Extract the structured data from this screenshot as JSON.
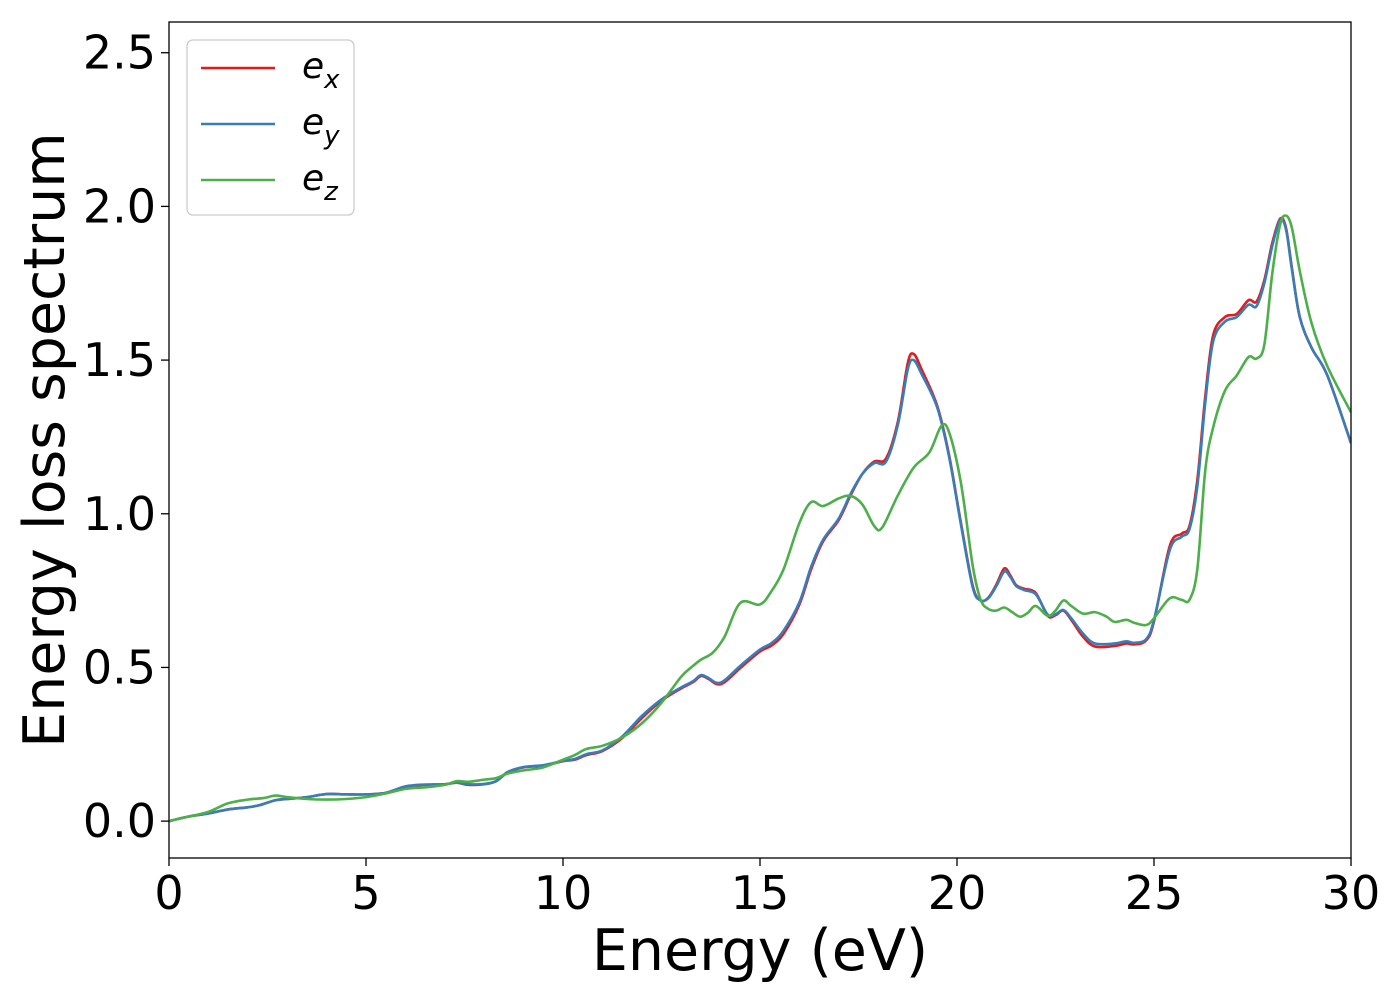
{
  "chart_data": {
    "type": "line",
    "title": "",
    "xlabel": "Energy (eV)",
    "ylabel": "Energy loss spectrum",
    "xlim": [
      0,
      30
    ],
    "ylim": [
      -0.12,
      2.6
    ],
    "x_ticks": [
      0,
      5,
      10,
      15,
      20,
      25,
      30
    ],
    "x_tick_labels": [
      "0",
      "5",
      "10",
      "15",
      "20",
      "25",
      "30"
    ],
    "y_ticks": [
      0.0,
      0.5,
      1.0,
      1.5,
      2.0,
      2.5
    ],
    "y_tick_labels": [
      "0.0",
      "0.5",
      "1.0",
      "1.5",
      "2.0",
      "2.5"
    ],
    "grid": false,
    "legend_position": "top-left",
    "series": [
      {
        "name": "e_x",
        "legend_base": "e",
        "legend_sub": "x",
        "color": "#e41a1c",
        "points": [
          [
            0,
            0.0
          ],
          [
            0.5,
            0.015
          ],
          [
            1,
            0.025
          ],
          [
            1.5,
            0.038
          ],
          [
            2,
            0.045
          ],
          [
            2.3,
            0.052
          ],
          [
            2.7,
            0.068
          ],
          [
            3,
            0.072
          ],
          [
            3.5,
            0.078
          ],
          [
            4,
            0.088
          ],
          [
            4.5,
            0.087
          ],
          [
            5,
            0.087
          ],
          [
            5.5,
            0.092
          ],
          [
            6,
            0.112
          ],
          [
            6.5,
            0.118
          ],
          [
            7,
            0.12
          ],
          [
            7.3,
            0.125
          ],
          [
            7.6,
            0.118
          ],
          [
            8,
            0.12
          ],
          [
            8.3,
            0.13
          ],
          [
            8.6,
            0.158
          ],
          [
            9,
            0.175
          ],
          [
            9.5,
            0.18
          ],
          [
            10,
            0.195
          ],
          [
            10.3,
            0.2
          ],
          [
            10.6,
            0.215
          ],
          [
            11,
            0.228
          ],
          [
            11.5,
            0.27
          ],
          [
            12,
            0.335
          ],
          [
            12.5,
            0.392
          ],
          [
            13,
            0.432
          ],
          [
            13.3,
            0.452
          ],
          [
            13.5,
            0.472
          ],
          [
            13.7,
            0.462
          ],
          [
            13.9,
            0.446
          ],
          [
            14.1,
            0.452
          ],
          [
            14.5,
            0.498
          ],
          [
            15,
            0.552
          ],
          [
            15.3,
            0.572
          ],
          [
            15.6,
            0.61
          ],
          [
            16,
            0.705
          ],
          [
            16.3,
            0.82
          ],
          [
            16.6,
            0.91
          ],
          [
            17,
            0.98
          ],
          [
            17.3,
            1.06
          ],
          [
            17.6,
            1.13
          ],
          [
            17.9,
            1.17
          ],
          [
            18.2,
            1.18
          ],
          [
            18.5,
            1.3
          ],
          [
            18.75,
            1.49
          ],
          [
            18.9,
            1.52
          ],
          [
            19.1,
            1.47
          ],
          [
            19.5,
            1.35
          ],
          [
            19.8,
            1.19
          ],
          [
            20.1,
            0.97
          ],
          [
            20.4,
            0.765
          ],
          [
            20.6,
            0.718
          ],
          [
            20.8,
            0.728
          ],
          [
            21,
            0.77
          ],
          [
            21.2,
            0.822
          ],
          [
            21.35,
            0.8
          ],
          [
            21.5,
            0.768
          ],
          [
            21.7,
            0.756
          ],
          [
            22,
            0.742
          ],
          [
            22.3,
            0.668
          ],
          [
            22.5,
            0.67
          ],
          [
            22.7,
            0.685
          ],
          [
            22.9,
            0.655
          ],
          [
            23.2,
            0.6
          ],
          [
            23.5,
            0.568
          ],
          [
            24,
            0.57
          ],
          [
            24.3,
            0.578
          ],
          [
            24.5,
            0.575
          ],
          [
            24.8,
            0.588
          ],
          [
            25,
            0.65
          ],
          [
            25.4,
            0.895
          ],
          [
            25.7,
            0.935
          ],
          [
            25.9,
            0.96
          ],
          [
            26.1,
            1.11
          ],
          [
            26.3,
            1.38
          ],
          [
            26.5,
            1.58
          ],
          [
            26.8,
            1.64
          ],
          [
            27.1,
            1.65
          ],
          [
            27.4,
            1.695
          ],
          [
            27.6,
            1.69
          ],
          [
            27.8,
            1.76
          ],
          [
            28,
            1.88
          ],
          [
            28.2,
            1.96
          ],
          [
            28.35,
            1.93
          ],
          [
            28.5,
            1.8
          ],
          [
            28.7,
            1.64
          ],
          [
            29,
            1.54
          ],
          [
            29.4,
            1.45
          ],
          [
            30,
            1.23
          ]
        ]
      },
      {
        "name": "e_y",
        "legend_base": "e",
        "legend_sub": "y",
        "color": "#377eb8",
        "points": [
          [
            0,
            0.0
          ],
          [
            0.5,
            0.015
          ],
          [
            1,
            0.025
          ],
          [
            1.5,
            0.038
          ],
          [
            2,
            0.045
          ],
          [
            2.3,
            0.052
          ],
          [
            2.7,
            0.068
          ],
          [
            3,
            0.072
          ],
          [
            3.5,
            0.078
          ],
          [
            4,
            0.088
          ],
          [
            4.5,
            0.087
          ],
          [
            5,
            0.087
          ],
          [
            5.5,
            0.092
          ],
          [
            6,
            0.113
          ],
          [
            6.5,
            0.119
          ],
          [
            7,
            0.12
          ],
          [
            7.3,
            0.125
          ],
          [
            7.6,
            0.12
          ],
          [
            8,
            0.121
          ],
          [
            8.3,
            0.13
          ],
          [
            8.6,
            0.16
          ],
          [
            9,
            0.176
          ],
          [
            9.5,
            0.182
          ],
          [
            10,
            0.196
          ],
          [
            10.3,
            0.202
          ],
          [
            10.6,
            0.218
          ],
          [
            11,
            0.23
          ],
          [
            11.5,
            0.275
          ],
          [
            12,
            0.342
          ],
          [
            12.5,
            0.396
          ],
          [
            13,
            0.435
          ],
          [
            13.3,
            0.455
          ],
          [
            13.5,
            0.475
          ],
          [
            13.7,
            0.465
          ],
          [
            13.9,
            0.45
          ],
          [
            14.1,
            0.458
          ],
          [
            14.5,
            0.505
          ],
          [
            15,
            0.558
          ],
          [
            15.3,
            0.58
          ],
          [
            15.6,
            0.62
          ],
          [
            16,
            0.712
          ],
          [
            16.3,
            0.828
          ],
          [
            16.6,
            0.915
          ],
          [
            17,
            0.985
          ],
          [
            17.3,
            1.065
          ],
          [
            17.6,
            1.13
          ],
          [
            17.9,
            1.165
          ],
          [
            18.2,
            1.17
          ],
          [
            18.5,
            1.29
          ],
          [
            18.75,
            1.47
          ],
          [
            18.9,
            1.5
          ],
          [
            19.1,
            1.455
          ],
          [
            19.5,
            1.345
          ],
          [
            19.8,
            1.185
          ],
          [
            20.1,
            0.965
          ],
          [
            20.4,
            0.76
          ],
          [
            20.6,
            0.718
          ],
          [
            20.8,
            0.726
          ],
          [
            21,
            0.765
          ],
          [
            21.2,
            0.812
          ],
          [
            21.35,
            0.795
          ],
          [
            21.5,
            0.765
          ],
          [
            21.7,
            0.752
          ],
          [
            22,
            0.738
          ],
          [
            22.3,
            0.672
          ],
          [
            22.5,
            0.673
          ],
          [
            22.7,
            0.687
          ],
          [
            22.9,
            0.66
          ],
          [
            23.2,
            0.61
          ],
          [
            23.5,
            0.578
          ],
          [
            24,
            0.578
          ],
          [
            24.3,
            0.585
          ],
          [
            24.5,
            0.58
          ],
          [
            24.8,
            0.592
          ],
          [
            25,
            0.655
          ],
          [
            25.4,
            0.882
          ],
          [
            25.7,
            0.925
          ],
          [
            25.9,
            0.95
          ],
          [
            26.1,
            1.09
          ],
          [
            26.3,
            1.36
          ],
          [
            26.5,
            1.56
          ],
          [
            26.8,
            1.625
          ],
          [
            27.1,
            1.64
          ],
          [
            27.4,
            1.68
          ],
          [
            27.6,
            1.675
          ],
          [
            27.8,
            1.75
          ],
          [
            28,
            1.87
          ],
          [
            28.2,
            1.955
          ],
          [
            28.35,
            1.925
          ],
          [
            28.5,
            1.795
          ],
          [
            28.7,
            1.64
          ],
          [
            29,
            1.54
          ],
          [
            29.4,
            1.45
          ],
          [
            30,
            1.23
          ]
        ]
      },
      {
        "name": "e_z",
        "legend_base": "e",
        "legend_sub": "z",
        "color": "#4daf4a",
        "points": [
          [
            0,
            0.0
          ],
          [
            0.5,
            0.015
          ],
          [
            1,
            0.03
          ],
          [
            1.5,
            0.058
          ],
          [
            2,
            0.07
          ],
          [
            2.4,
            0.075
          ],
          [
            2.7,
            0.083
          ],
          [
            3,
            0.078
          ],
          [
            3.5,
            0.072
          ],
          [
            4,
            0.07
          ],
          [
            4.5,
            0.072
          ],
          [
            5,
            0.078
          ],
          [
            5.5,
            0.09
          ],
          [
            6,
            0.105
          ],
          [
            6.5,
            0.11
          ],
          [
            7,
            0.118
          ],
          [
            7.3,
            0.13
          ],
          [
            7.6,
            0.128
          ],
          [
            8,
            0.135
          ],
          [
            8.3,
            0.14
          ],
          [
            8.6,
            0.155
          ],
          [
            9,
            0.165
          ],
          [
            9.5,
            0.175
          ],
          [
            10,
            0.2
          ],
          [
            10.3,
            0.215
          ],
          [
            10.6,
            0.235
          ],
          [
            11,
            0.245
          ],
          [
            11.5,
            0.272
          ],
          [
            12,
            0.318
          ],
          [
            12.5,
            0.385
          ],
          [
            13,
            0.47
          ],
          [
            13.3,
            0.505
          ],
          [
            13.5,
            0.525
          ],
          [
            13.8,
            0.548
          ],
          [
            14.1,
            0.6
          ],
          [
            14.5,
            0.71
          ],
          [
            15,
            0.705
          ],
          [
            15.3,
            0.75
          ],
          [
            15.6,
            0.82
          ],
          [
            16,
            0.97
          ],
          [
            16.3,
            1.038
          ],
          [
            16.6,
            1.025
          ],
          [
            17,
            1.05
          ],
          [
            17.3,
            1.058
          ],
          [
            17.6,
            1.03
          ],
          [
            17.9,
            0.96
          ],
          [
            18.1,
            0.955
          ],
          [
            18.5,
            1.06
          ],
          [
            18.9,
            1.15
          ],
          [
            19.3,
            1.2
          ],
          [
            19.6,
            1.285
          ],
          [
            19.8,
            1.265
          ],
          [
            20.1,
            1.1
          ],
          [
            20.4,
            0.83
          ],
          [
            20.6,
            0.72
          ],
          [
            20.8,
            0.69
          ],
          [
            21,
            0.685
          ],
          [
            21.2,
            0.695
          ],
          [
            21.4,
            0.68
          ],
          [
            21.6,
            0.665
          ],
          [
            21.8,
            0.678
          ],
          [
            22,
            0.7
          ],
          [
            22.3,
            0.668
          ],
          [
            22.5,
            0.685
          ],
          [
            22.7,
            0.718
          ],
          [
            22.9,
            0.7
          ],
          [
            23.2,
            0.675
          ],
          [
            23.5,
            0.68
          ],
          [
            23.8,
            0.665
          ],
          [
            24,
            0.648
          ],
          [
            24.3,
            0.655
          ],
          [
            24.5,
            0.645
          ],
          [
            24.8,
            0.638
          ],
          [
            25,
            0.66
          ],
          [
            25.4,
            0.725
          ],
          [
            25.7,
            0.72
          ],
          [
            25.9,
            0.72
          ],
          [
            26.1,
            0.82
          ],
          [
            26.3,
            1.14
          ],
          [
            26.5,
            1.28
          ],
          [
            26.8,
            1.4
          ],
          [
            27.1,
            1.45
          ],
          [
            27.4,
            1.51
          ],
          [
            27.6,
            1.505
          ],
          [
            27.8,
            1.55
          ],
          [
            28,
            1.78
          ],
          [
            28.2,
            1.94
          ],
          [
            28.35,
            1.97
          ],
          [
            28.5,
            1.93
          ],
          [
            28.7,
            1.79
          ],
          [
            29,
            1.62
          ],
          [
            29.4,
            1.48
          ],
          [
            30,
            1.33
          ]
        ]
      }
    ]
  }
}
